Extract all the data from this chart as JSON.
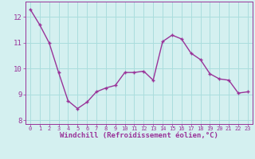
{
  "x": [
    0,
    1,
    2,
    3,
    4,
    5,
    6,
    7,
    8,
    9,
    10,
    11,
    12,
    13,
    14,
    15,
    16,
    17,
    18,
    19,
    20,
    21,
    22,
    23
  ],
  "y": [
    12.3,
    11.7,
    11.0,
    9.85,
    8.75,
    8.45,
    8.7,
    9.1,
    9.25,
    9.35,
    9.85,
    9.85,
    9.9,
    9.55,
    11.05,
    11.3,
    11.15,
    10.6,
    10.35,
    9.8,
    9.6,
    9.55,
    9.05,
    9.1
  ],
  "line_color": "#993399",
  "marker_color": "#993399",
  "bg_color": "#d4f0f0",
  "grid_color": "#aadddd",
  "xlabel": "Windchill (Refroidissement éolien,°C)",
  "xlabel_color": "#993399",
  "xlim": [
    -0.5,
    23.5
  ],
  "ylim": [
    7.85,
    12.6
  ],
  "yticks": [
    8,
    9,
    10,
    11,
    12
  ],
  "xticks": [
    0,
    1,
    2,
    3,
    4,
    5,
    6,
    7,
    8,
    9,
    10,
    11,
    12,
    13,
    14,
    15,
    16,
    17,
    18,
    19,
    20,
    21,
    22,
    23
  ],
  "xtick_labels": [
    "0",
    "1",
    "2",
    "3",
    "4",
    "5",
    "6",
    "7",
    "8",
    "9",
    "10",
    "11",
    "12",
    "13",
    "14",
    "15",
    "16",
    "17",
    "18",
    "19",
    "20",
    "21",
    "22",
    "23"
  ],
  "tick_color": "#993399",
  "line_width": 1.0,
  "marker_size": 2.5
}
